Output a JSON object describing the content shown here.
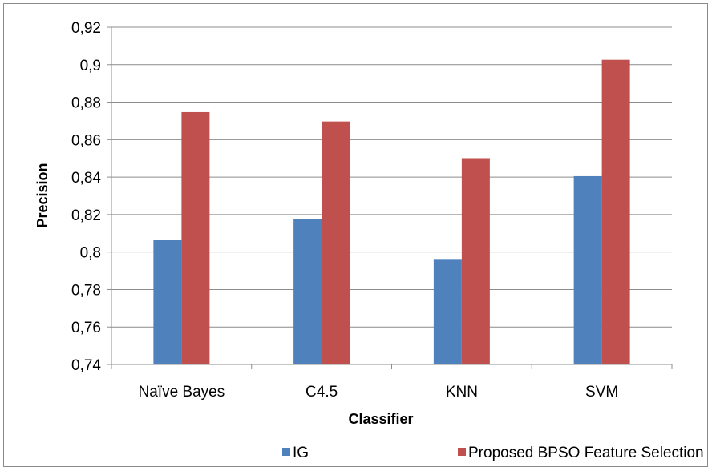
{
  "chart_data": {
    "type": "bar",
    "title": "",
    "xlabel": "Classifier",
    "ylabel": "Precision",
    "categories": [
      "Naïve Bayes",
      "C4.5",
      "KNN",
      "SVM"
    ],
    "series": [
      {
        "name": "IG",
        "color": "#4F81BD",
        "values": [
          0.8063,
          0.8177,
          0.7963,
          0.8405
        ]
      },
      {
        "name": "Proposed BPSO Feature Selection",
        "color": "#C0504D",
        "values": [
          0.8747,
          0.8697,
          0.8501,
          0.9026
        ]
      }
    ],
    "ylim": [
      0.74,
      0.92
    ],
    "yticks": [
      "0,74",
      "0,76",
      "0,78",
      "0,8",
      "0,82",
      "0,84",
      "0,86",
      "0,88",
      "0,9",
      "0,92"
    ],
    "grid": true,
    "legend_position": "bottom"
  }
}
